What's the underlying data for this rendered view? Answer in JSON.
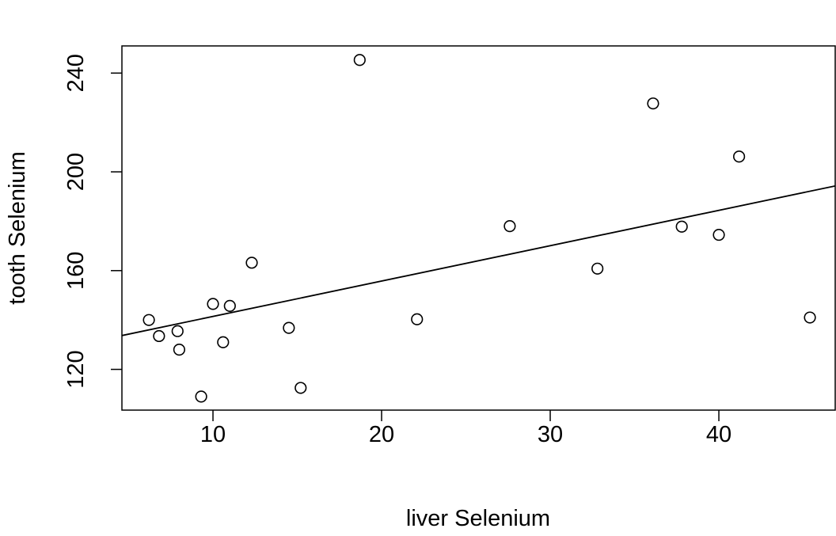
{
  "chart_data": {
    "type": "scatter",
    "title": "",
    "xlabel": "liver Selenium",
    "ylabel": "tooth Selenium",
    "xlim": [
      4.6,
      46.9
    ],
    "ylim": [
      103.5,
      251.0
    ],
    "xticks": [
      10,
      20,
      30,
      40
    ],
    "yticks": [
      120,
      160,
      200,
      240
    ],
    "x": [
      6.2,
      6.8,
      7.9,
      8.0,
      9.3,
      10.0,
      10.6,
      11.0,
      12.3,
      14.5,
      15.2,
      18.7,
      22.1,
      27.6,
      32.8,
      36.1,
      37.8,
      40.0,
      41.2,
      45.4
    ],
    "y": [
      140.0,
      133.5,
      135.5,
      128.0,
      109.0,
      146.5,
      131.0,
      145.7,
      163.2,
      136.8,
      112.5,
      245.3,
      140.3,
      178.0,
      160.8,
      227.7,
      177.8,
      174.5,
      206.2,
      141.0
    ],
    "regression_line": {
      "x": [
        4.6,
        46.9
      ],
      "y": [
        133.7,
        194.3
      ]
    },
    "grid": false,
    "legend": "none",
    "colors": {
      "points": "#000000",
      "line": "#000000",
      "background": "#ffffff"
    }
  }
}
